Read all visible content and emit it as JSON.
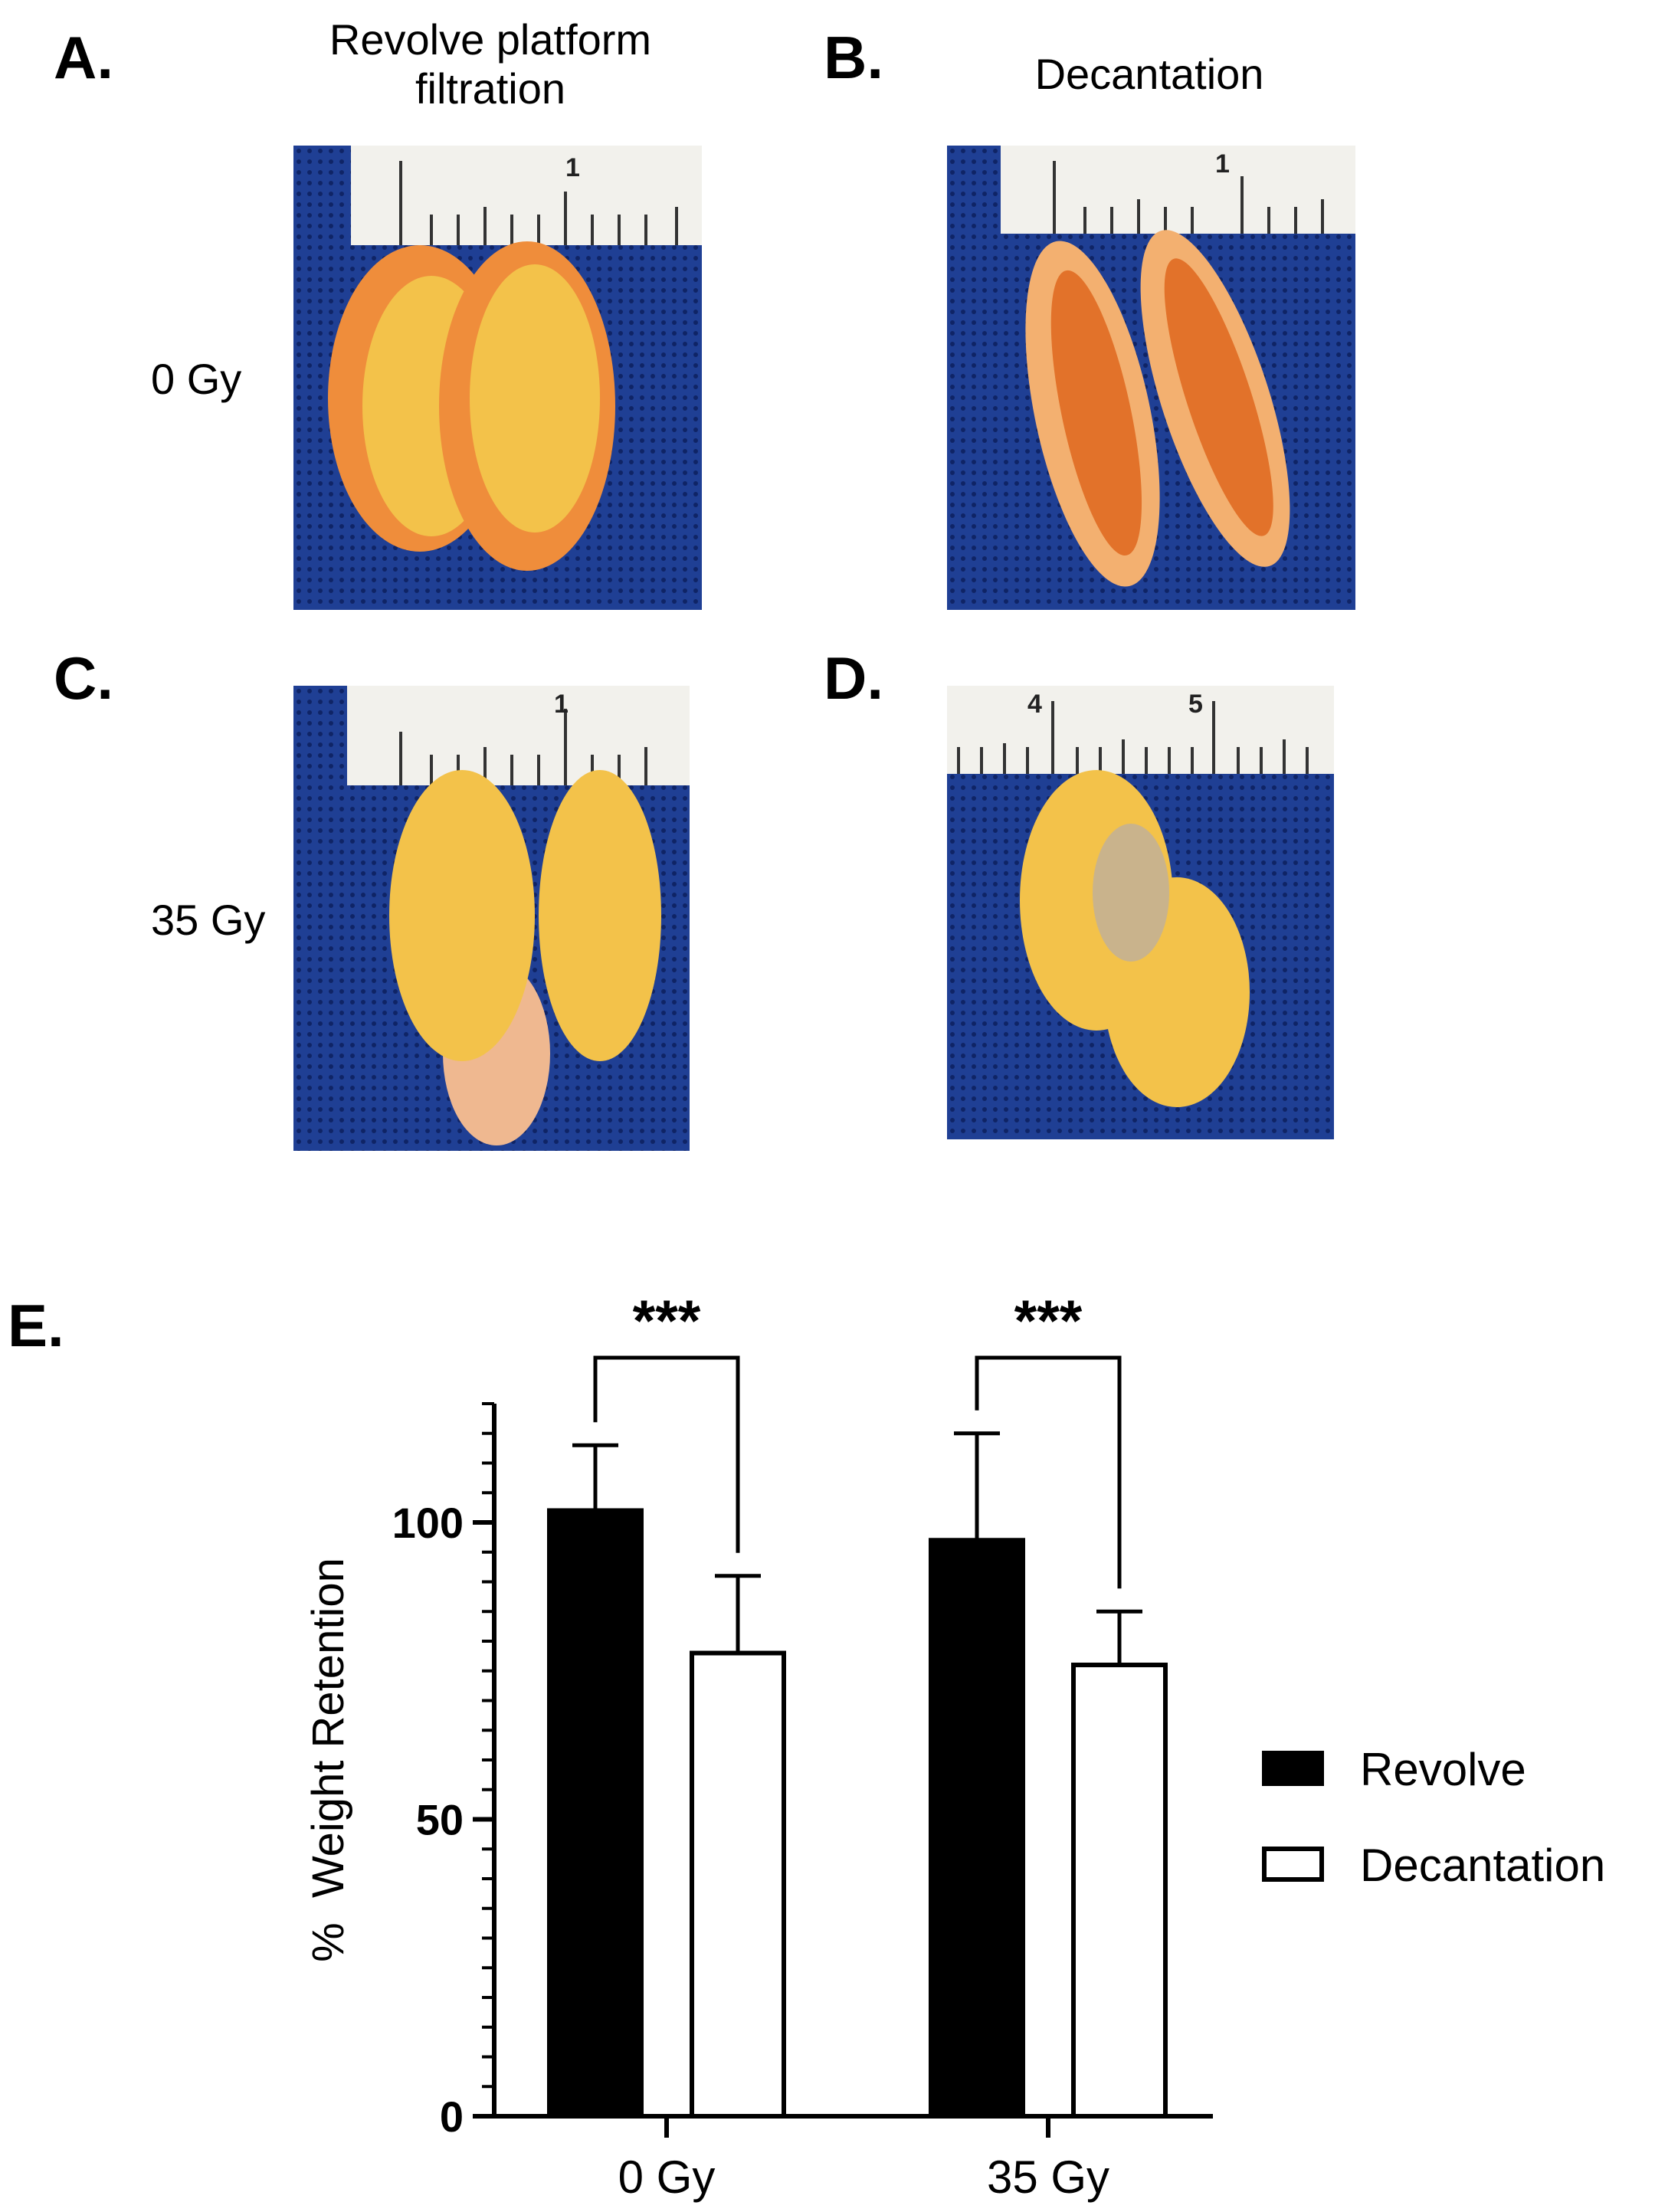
{
  "panels": {
    "a": {
      "letter": "A.",
      "title_line1": "Revolve platform",
      "title_line2": "filtration",
      "row_label": "0 Gy",
      "ruler_label": "1"
    },
    "b": {
      "letter": "B.",
      "title": "Decantation",
      "ruler_label": "1"
    },
    "c": {
      "letter": "C.",
      "row_label": "35 Gy",
      "ruler_label": "1"
    },
    "d": {
      "letter": "D.",
      "ruler_label_1": "4",
      "ruler_label_2": "5"
    },
    "e": {
      "letter": "E."
    }
  },
  "colors": {
    "mesh": "#1f3f94",
    "tissue_orange": "#f0a24a",
    "tissue_yellow": "#f3c24a",
    "ruler": "#f2f1ec",
    "revolve_fill": "#000000",
    "decantation_fill": "#ffffff"
  },
  "chart_data": {
    "type": "bar",
    "categories": [
      "0 Gy",
      "35 Gy"
    ],
    "series": [
      {
        "name": "Revolve",
        "values": [
          102,
          97
        ],
        "error": [
          11,
          18
        ]
      },
      {
        "name": "Decantation",
        "values": [
          78,
          76
        ],
        "error": [
          13,
          9
        ]
      }
    ],
    "ylabel": "%  Weight Retention",
    "xlabel": "",
    "ylim": [
      0,
      120
    ],
    "yticks": [
      0,
      50,
      100
    ],
    "ytick_labels": [
      "0",
      "50",
      "100"
    ],
    "significance": [
      {
        "category": "0 Gy",
        "label": "***"
      },
      {
        "category": "35 Gy",
        "label": "***"
      }
    ],
    "legend_position": "right",
    "grid": false
  }
}
